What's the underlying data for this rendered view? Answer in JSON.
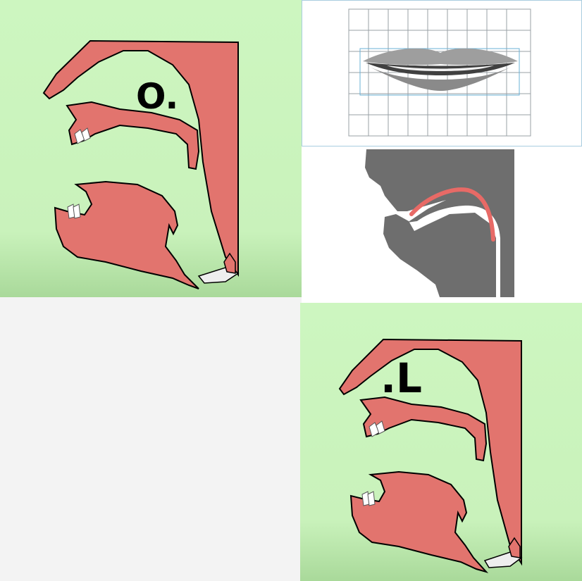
{
  "panels": {
    "top_left": {
      "symbol": "O."
    },
    "top_right_lips": {},
    "top_right_profile": {},
    "bottom_left": {},
    "bottom_right": {
      "symbol": ".L"
    }
  },
  "colors": {
    "panel_green": "#ccf5bf",
    "articulator_red": "#e2746e",
    "outline": "#000000",
    "tongue_line": "#e86a66",
    "profile_gray": "#6e6e6e"
  }
}
